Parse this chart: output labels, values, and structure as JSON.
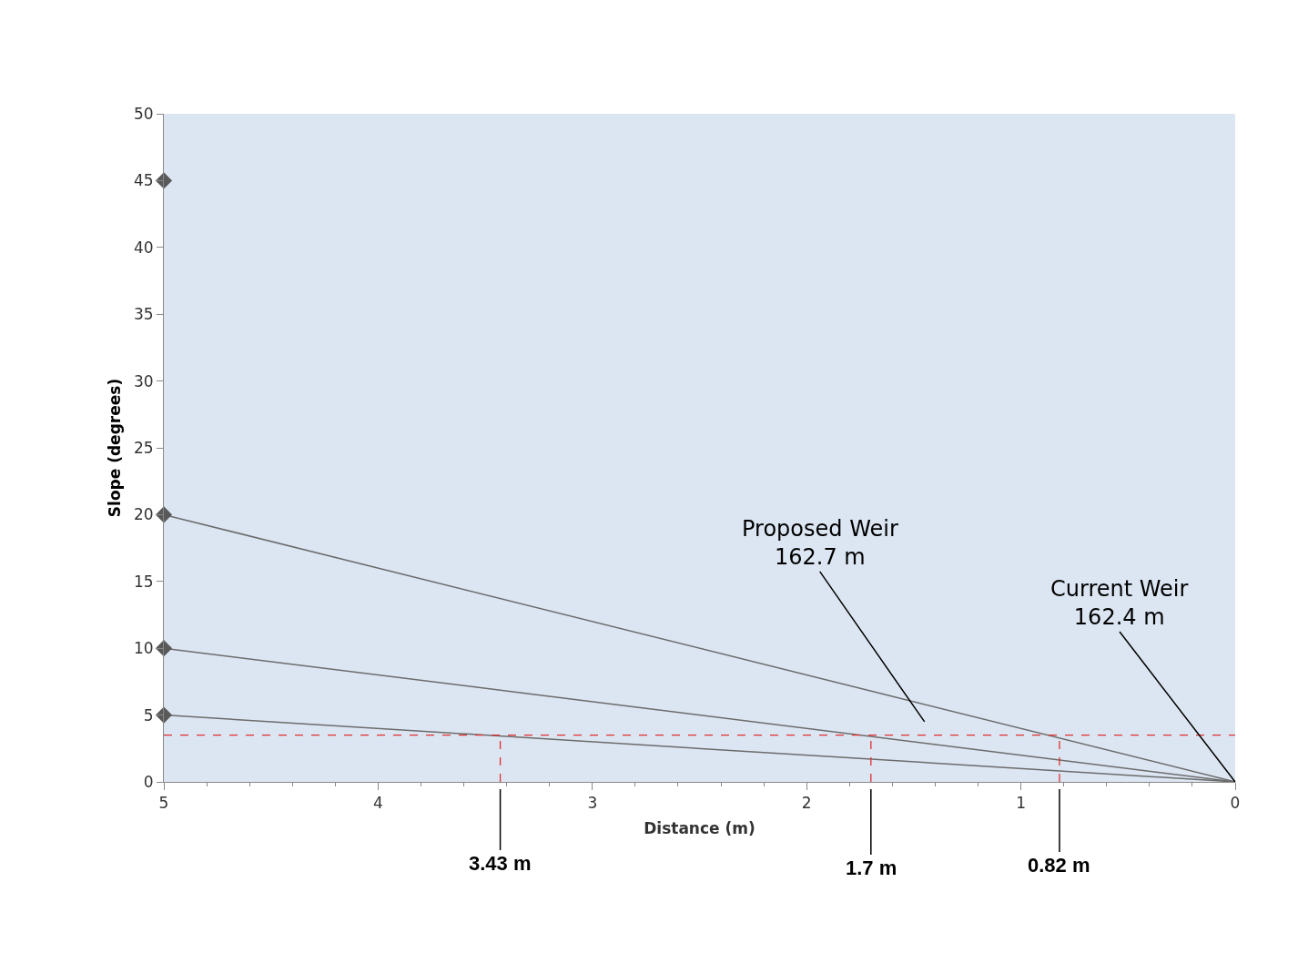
{
  "chart_data": {
    "type": "line",
    "xlabel": "Distance (m)",
    "ylabel": "Slope (degrees)",
    "xlim": [
      5,
      0
    ],
    "xticks": [
      5,
      4,
      3,
      2,
      1,
      0
    ],
    "ylim": [
      0,
      50
    ],
    "yticks": [
      0,
      5,
      10,
      15,
      20,
      25,
      30,
      35,
      40,
      45,
      50
    ],
    "grid": false,
    "series": [
      {
        "color": "#6b6b6b",
        "x": [
          5,
          0
        ],
        "values": [
          20,
          0
        ],
        "marker": "none",
        "line_style": "solid"
      },
      {
        "color": "#6b6b6b",
        "x": [
          5,
          0
        ],
        "values": [
          10,
          0
        ],
        "marker": "none",
        "line_style": "solid"
      },
      {
        "color": "#6b6b6b",
        "x": [
          5,
          0
        ],
        "values": [
          5,
          0
        ],
        "marker": "none",
        "line_style": "solid"
      },
      {
        "type": "scatter",
        "color": "#595959",
        "x": [
          5,
          5,
          5,
          5
        ],
        "values": [
          45,
          20,
          10,
          5
        ],
        "marker": "diamond"
      },
      {
        "color": "#e03030",
        "x": [
          3.43,
          3.43
        ],
        "values": [
          0,
          3.5
        ],
        "marker": "none",
        "line_style": "dashed"
      },
      {
        "color": "#e03030",
        "x": [
          1.7,
          1.7
        ],
        "values": [
          0,
          3.5
        ],
        "marker": "none",
        "line_style": "dashed"
      },
      {
        "color": "#e03030",
        "x": [
          0.82,
          0.82
        ],
        "values": [
          0,
          3.5
        ],
        "marker": "none",
        "line_style": "dashed"
      }
    ],
    "ref_lines": [
      {
        "axis": "y",
        "value": 3.5,
        "color": "#e03030",
        "line_style": "dashed"
      }
    ],
    "annotations": [
      "Proposed Weir\n162.7 m",
      {
        "text": "Current Weir\n162.4 m",
        "x": 0,
        "y": 0
      },
      {
        "text": "3.43 m",
        "x": 3.43,
        "y": 0
      },
      {
        "text": "1.7 m",
        "x": 1.7,
        "y": 0
      },
      {
        "text": "0.82 m",
        "x": 0.82,
        "y": 0
      }
    ]
  }
}
